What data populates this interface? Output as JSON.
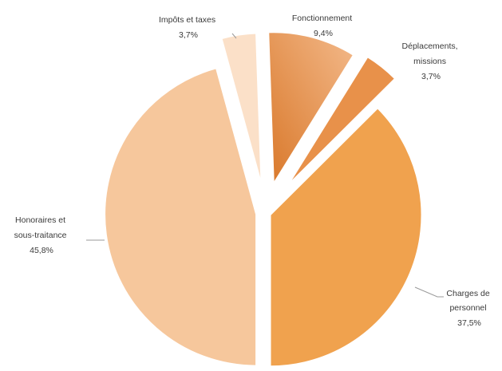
{
  "chart_data": {
    "type": "pie",
    "exploded": true,
    "slices": [
      {
        "label_lines": [
          "Charges de",
          "personnel"
        ],
        "value_text": "37,5%",
        "value": 37.5,
        "color": "#f0a24e"
      },
      {
        "label_lines": [
          "Honoraires et",
          "sous-traitance"
        ],
        "value_text": "45,8%",
        "value": 45.8,
        "color": "#f6c79c"
      },
      {
        "label_lines": [
          "Impôts et taxes"
        ],
        "value_text": "3,7%",
        "value": 3.7,
        "color": "#fbe0c8"
      },
      {
        "label_lines": [
          "Fonctionnement"
        ],
        "value_text": "9,4%",
        "value": 9.4,
        "color": "#eb9c59"
      },
      {
        "label_lines": [
          "Déplacements,",
          "missions"
        ],
        "value_text": "3,7%",
        "value": 3.7,
        "color": "#e8914a"
      }
    ]
  }
}
